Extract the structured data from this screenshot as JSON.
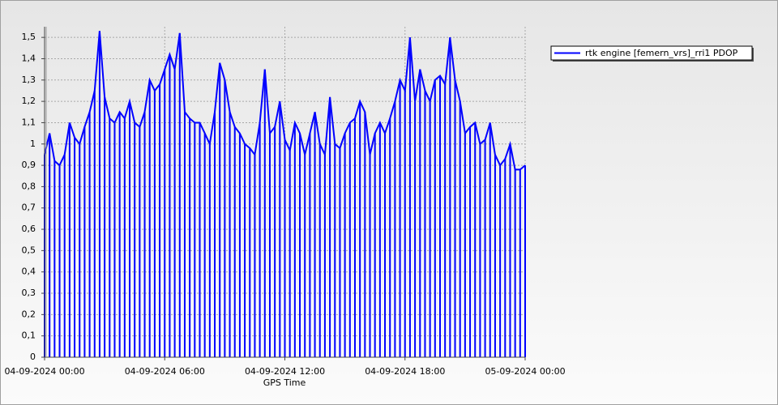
{
  "chart_data": {
    "type": "line",
    "x_label": "GPS Time",
    "x": [
      "04-09-2024 00:00",
      "04-09-2024 00:15",
      "04-09-2024 00:30",
      "04-09-2024 00:45",
      "04-09-2024 01:00",
      "04-09-2024 01:15",
      "04-09-2024 01:30",
      "04-09-2024 01:45",
      "04-09-2024 02:00",
      "04-09-2024 02:15",
      "04-09-2024 02:30",
      "04-09-2024 02:45",
      "04-09-2024 03:00",
      "04-09-2024 03:15",
      "04-09-2024 03:30",
      "04-09-2024 03:45",
      "04-09-2024 04:00",
      "04-09-2024 04:15",
      "04-09-2024 04:30",
      "04-09-2024 04:45",
      "04-09-2024 05:00",
      "04-09-2024 05:15",
      "04-09-2024 05:30",
      "04-09-2024 05:45",
      "04-09-2024 06:00",
      "04-09-2024 06:15",
      "04-09-2024 06:30",
      "04-09-2024 06:45",
      "04-09-2024 07:00",
      "04-09-2024 07:15",
      "04-09-2024 07:30",
      "04-09-2024 07:45",
      "04-09-2024 08:00",
      "04-09-2024 08:15",
      "04-09-2024 08:30",
      "04-09-2024 08:45",
      "04-09-2024 09:00",
      "04-09-2024 09:15",
      "04-09-2024 09:30",
      "04-09-2024 09:45",
      "04-09-2024 10:00",
      "04-09-2024 10:15",
      "04-09-2024 10:30",
      "04-09-2024 10:45",
      "04-09-2024 11:00",
      "04-09-2024 11:15",
      "04-09-2024 11:30",
      "04-09-2024 11:45",
      "04-09-2024 12:00",
      "04-09-2024 12:15",
      "04-09-2024 12:30",
      "04-09-2024 12:45",
      "04-09-2024 13:00",
      "04-09-2024 13:15",
      "04-09-2024 13:30",
      "04-09-2024 13:45",
      "04-09-2024 14:00",
      "04-09-2024 14:15",
      "04-09-2024 14:30",
      "04-09-2024 14:45",
      "04-09-2024 15:00",
      "04-09-2024 15:15",
      "04-09-2024 15:30",
      "04-09-2024 15:45",
      "04-09-2024 16:00",
      "04-09-2024 16:15",
      "04-09-2024 16:30",
      "04-09-2024 16:45",
      "04-09-2024 17:00",
      "04-09-2024 17:15",
      "04-09-2024 17:30",
      "04-09-2024 17:45",
      "04-09-2024 18:00",
      "04-09-2024 18:15",
      "04-09-2024 18:30",
      "04-09-2024 18:45",
      "04-09-2024 19:00",
      "04-09-2024 19:15",
      "04-09-2024 19:30",
      "04-09-2024 19:45",
      "04-09-2024 20:00",
      "04-09-2024 20:15",
      "04-09-2024 20:30",
      "04-09-2024 20:45",
      "04-09-2024 21:00",
      "04-09-2024 21:15",
      "04-09-2024 21:30",
      "04-09-2024 21:45",
      "04-09-2024 22:00",
      "04-09-2024 22:15",
      "04-09-2024 22:30",
      "04-09-2024 22:45",
      "04-09-2024 23:00",
      "04-09-2024 23:15",
      "04-09-2024 23:30",
      "04-09-2024 23:45",
      "05-09-2024 00:00"
    ],
    "series": [
      {
        "name": "rtk engine [femern_vrs]_rri1 PDOP",
        "color": "#0000ff",
        "values": [
          0.95,
          1.05,
          0.92,
          0.9,
          0.95,
          1.1,
          1.03,
          1.0,
          1.08,
          1.15,
          1.25,
          1.53,
          1.22,
          1.12,
          1.1,
          1.15,
          1.12,
          1.2,
          1.1,
          1.08,
          1.15,
          1.3,
          1.25,
          1.28,
          1.35,
          1.42,
          1.35,
          1.52,
          1.15,
          1.12,
          1.1,
          1.1,
          1.05,
          1.0,
          1.15,
          1.38,
          1.3,
          1.15,
          1.08,
          1.05,
          1.0,
          0.98,
          0.95,
          1.1,
          1.35,
          1.05,
          1.08,
          1.2,
          1.02,
          0.97,
          1.1,
          1.05,
          0.95,
          1.05,
          1.15,
          1.0,
          0.95,
          1.22,
          1.0,
          0.98,
          1.05,
          1.1,
          1.12,
          1.2,
          1.15,
          0.95,
          1.05,
          1.1,
          1.05,
          1.12,
          1.2,
          1.3,
          1.25,
          1.5,
          1.2,
          1.35,
          1.25,
          1.2,
          1.3,
          1.32,
          1.28,
          1.5,
          1.3,
          1.2,
          1.05,
          1.08,
          1.1,
          1.0,
          1.02,
          1.1,
          0.95,
          0.9,
          0.93,
          1.0,
          0.88,
          0.88,
          0.9
        ]
      }
    ],
    "drop_lines": true,
    "xlim": [
      "04-09-2024 00:00",
      "05-09-2024 00:00"
    ],
    "xticks": [
      "04-09-2024 00:00",
      "04-09-2024 06:00",
      "04-09-2024 12:00",
      "04-09-2024 18:00",
      "05-09-2024 00:00"
    ],
    "ylim": [
      0,
      1.55
    ],
    "yticks": [
      0,
      {
        "value": 0.1,
        "label": "0,1"
      },
      {
        "value": 0.2,
        "label": "0,2"
      },
      {
        "value": 0.3,
        "label": "0,3"
      },
      {
        "value": 0.4,
        "label": "0,4"
      },
      {
        "value": 0.5,
        "label": "0,5"
      },
      {
        "value": 0.6,
        "label": "0,6"
      },
      {
        "value": 0.7,
        "label": "0,7"
      },
      {
        "value": 0.8,
        "label": "0,8"
      },
      {
        "value": 0.9,
        "label": "0,9"
      },
      1,
      {
        "value": 1.1,
        "label": "1,1"
      },
      {
        "value": 1.2,
        "label": "1,2"
      },
      {
        "value": 1.3,
        "label": "1,3"
      },
      {
        "value": 1.4,
        "label": "1,4"
      },
      {
        "value": 1.5,
        "label": "1,5"
      }
    ],
    "grid": true,
    "legend": "right"
  }
}
